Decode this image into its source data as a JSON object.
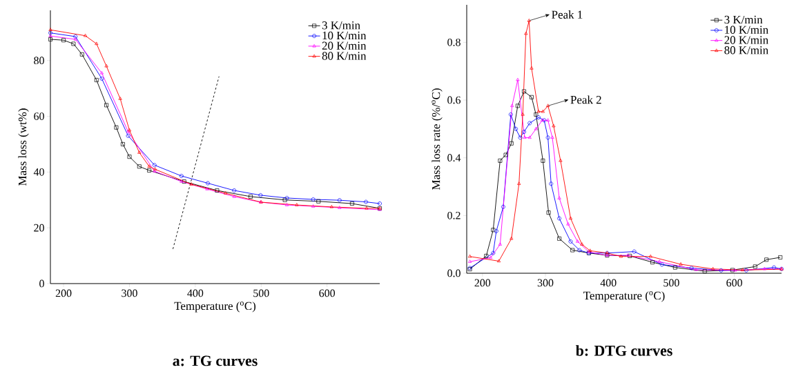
{
  "chart_data": [
    {
      "type": "line",
      "title": "**a: TG curves**",
      "xlabel": "Temperature ($^{o}$C)",
      "ylabel": "Mass loss (wt%)",
      "xlim": [
        180,
        680
      ],
      "ylim": [
        0,
        98
      ],
      "xticks": [
        200,
        300,
        400,
        500,
        600
      ],
      "yticks": [
        0,
        20,
        40,
        60,
        80
      ],
      "legend": "top right",
      "line_style": "solid",
      "series": [
        {
          "name": "3 K/min",
          "color": "#000000",
          "marker": "square",
          "x": [
            180,
            200,
            215,
            228,
            250,
            265,
            280,
            290,
            300,
            315,
            330,
            383,
            433,
            484,
            536,
            587,
            638,
            680
          ],
          "values": [
            87.6,
            87.3,
            86,
            82.2,
            73,
            64,
            56,
            50,
            45.5,
            42,
            40.6,
            36.6,
            33.4,
            31.2,
            30,
            29.5,
            28.7,
            27
          ]
        },
        {
          "name": "10 K/min",
          "color": "#0000ff",
          "marker": "circle",
          "x": [
            180,
            218,
            258,
            298,
            338,
            379,
            419,
            459,
            499,
            539,
            579,
            619,
            659,
            680
          ],
          "values": [
            89.9,
            88.6,
            73.5,
            53,
            42.5,
            38.6,
            36,
            33.4,
            31.7,
            30.7,
            30.2,
            29.9,
            29.3,
            28.7
          ]
        },
        {
          "name": "20 K/min",
          "color": "#ff00ff",
          "marker": "triangle",
          "x": [
            180,
            218,
            258,
            298,
            338,
            379,
            418,
            459,
            499,
            539,
            579,
            619,
            680
          ],
          "values": [
            88.8,
            87.6,
            75.5,
            54.5,
            40.3,
            36.6,
            33.9,
            31.2,
            29.2,
            28.2,
            27.7,
            27.2,
            26.5
          ]
        },
        {
          "name": "80 K/min",
          "color": "#ff0000",
          "marker": "triangle",
          "x": [
            180,
            233,
            250,
            265,
            286,
            300,
            315,
            330,
            339,
            394,
            446,
            500,
            554,
            607,
            660,
            680
          ],
          "values": [
            91,
            88.9,
            86,
            78,
            66.3,
            55,
            47,
            42,
            41,
            35.6,
            32.4,
            29.2,
            28.2,
            27.5,
            27,
            27
          ]
        },
        {
          "type": "line",
          "color": "#000000",
          "marker": "none",
          "line_style": "dashed",
          "x": [
            366,
            436
          ],
          "values": [
            12.4,
            74.3
          ]
        }
      ]
    },
    {
      "type": "line",
      "title": "**b: DTG curves**",
      "xlabel": "Temperature ($^{o}$C)",
      "ylabel": "Mass loss rate (%/$^{o}$C)",
      "xlim": [
        175,
        675
      ],
      "ylim": [
        0,
        0.93
      ],
      "xticks": [
        200,
        300,
        400,
        500,
        600
      ],
      "yticks": [
        {
          "value": 0,
          "label": "0.0"
        },
        0.2,
        0.4,
        0.6,
        0.8
      ],
      "legend": "top right",
      "line_style": "solid",
      "annotations": [
        {
          "text": "Peak 1",
          "x": 274,
          "y": 0.875
        },
        {
          "text": "Peak 2",
          "x": 304,
          "y": 0.58
        }
      ],
      "series": [
        {
          "name": "3 K/min",
          "color": "#000000",
          "marker": "square",
          "x": [
            180,
            206,
            217,
            228,
            237,
            246,
            256,
            266,
            278,
            285,
            296,
            305,
            322,
            343,
            369,
            398,
            434,
            470,
            506,
            553,
            597,
            633,
            651,
            673
          ],
          "values": [
            0.014,
            0.06,
            0.15,
            0.39,
            0.41,
            0.45,
            0.58,
            0.63,
            0.61,
            0.55,
            0.39,
            0.21,
            0.12,
            0.08,
            0.07,
            0.062,
            0.06,
            0.038,
            0.02,
            0.007,
            0.011,
            0.023,
            0.047,
            0.055
          ]
        },
        {
          "name": "10 K/min",
          "color": "#0000ff",
          "marker": "circle",
          "x": [
            180,
            217,
            222,
            233,
            245,
            253,
            260,
            266,
            275,
            289,
            298,
            304,
            309,
            322,
            340,
            354,
            369,
            398,
            441,
            485,
            532,
            579,
            619,
            663,
            675
          ],
          "values": [
            0.018,
            0.07,
            0.146,
            0.23,
            0.55,
            0.5,
            0.47,
            0.49,
            0.52,
            0.54,
            0.53,
            0.47,
            0.31,
            0.19,
            0.11,
            0.08,
            0.07,
            0.07,
            0.075,
            0.03,
            0.018,
            0.01,
            0.01,
            0.02,
            0.015
          ]
        },
        {
          "name": "20 K/min",
          "color": "#ff00ff",
          "marker": "triangle",
          "x": [
            180,
            213,
            228,
            247,
            256,
            267,
            275,
            285,
            295,
            304,
            311,
            322,
            336,
            351,
            369,
            398,
            431,
            481,
            539,
            601,
            648,
            675
          ],
          "values": [
            0.04,
            0.054,
            0.1,
            0.58,
            0.67,
            0.47,
            0.47,
            0.5,
            0.53,
            0.53,
            0.47,
            0.26,
            0.17,
            0.11,
            0.074,
            0.062,
            0.062,
            0.04,
            0.012,
            0.01,
            0.015,
            0.015
          ]
        },
        {
          "name": "80 K/min",
          "color": "#ff0000",
          "marker": "triangle",
          "x": [
            180,
            226,
            246,
            258,
            264,
            269,
            274,
            278,
            289,
            296,
            304,
            313,
            324,
            340,
            358,
            371,
            398,
            420,
            467,
            515,
            566,
            613,
            675
          ],
          "values": [
            0.058,
            0.042,
            0.12,
            0.31,
            0.55,
            0.83,
            0.875,
            0.71,
            0.56,
            0.56,
            0.58,
            0.51,
            0.39,
            0.19,
            0.1,
            0.078,
            0.07,
            0.058,
            0.058,
            0.031,
            0.015,
            0.011,
            0.014
          ]
        }
      ]
    }
  ]
}
